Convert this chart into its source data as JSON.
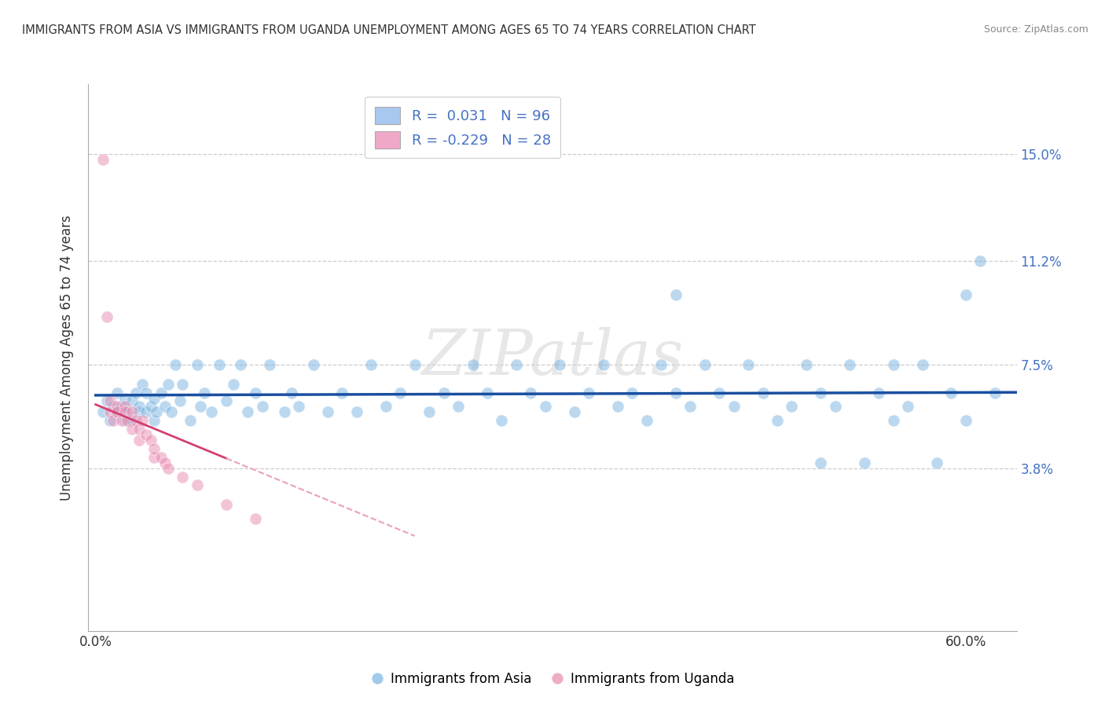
{
  "title": "IMMIGRANTS FROM ASIA VS IMMIGRANTS FROM UGANDA UNEMPLOYMENT AMONG AGES 65 TO 74 YEARS CORRELATION CHART",
  "source": "Source: ZipAtlas.com",
  "ylabel": "Unemployment Among Ages 65 to 74 years",
  "y_tick_labels": [
    "3.8%",
    "7.5%",
    "11.2%",
    "15.0%"
  ],
  "y_ticks": [
    0.038,
    0.075,
    0.112,
    0.15
  ],
  "xlim": [
    -0.005,
    0.635
  ],
  "ylim": [
    -0.02,
    0.175
  ],
  "asia_color": "#7ab3e0",
  "uganda_color": "#e88ab0",
  "asia_line_color": "#1a4fa0",
  "uganda_line_color": "#d44070",
  "uganda_line_dashed_color": "#e8a0c0",
  "watermark": "ZIPatlas",
  "asia_scatter": [
    [
      0.005,
      0.058
    ],
    [
      0.008,
      0.062
    ],
    [
      0.01,
      0.055
    ],
    [
      0.012,
      0.06
    ],
    [
      0.015,
      0.058
    ],
    [
      0.015,
      0.065
    ],
    [
      0.018,
      0.06
    ],
    [
      0.02,
      0.055
    ],
    [
      0.02,
      0.063
    ],
    [
      0.022,
      0.058
    ],
    [
      0.025,
      0.062
    ],
    [
      0.025,
      0.055
    ],
    [
      0.028,
      0.065
    ],
    [
      0.03,
      0.058
    ],
    [
      0.03,
      0.06
    ],
    [
      0.032,
      0.068
    ],
    [
      0.035,
      0.058
    ],
    [
      0.035,
      0.065
    ],
    [
      0.038,
      0.06
    ],
    [
      0.04,
      0.055
    ],
    [
      0.04,
      0.063
    ],
    [
      0.042,
      0.058
    ],
    [
      0.045,
      0.065
    ],
    [
      0.048,
      0.06
    ],
    [
      0.05,
      0.068
    ],
    [
      0.052,
      0.058
    ],
    [
      0.055,
      0.075
    ],
    [
      0.058,
      0.062
    ],
    [
      0.06,
      0.068
    ],
    [
      0.065,
      0.055
    ],
    [
      0.07,
      0.075
    ],
    [
      0.072,
      0.06
    ],
    [
      0.075,
      0.065
    ],
    [
      0.08,
      0.058
    ],
    [
      0.085,
      0.075
    ],
    [
      0.09,
      0.062
    ],
    [
      0.095,
      0.068
    ],
    [
      0.1,
      0.075
    ],
    [
      0.105,
      0.058
    ],
    [
      0.11,
      0.065
    ],
    [
      0.115,
      0.06
    ],
    [
      0.12,
      0.075
    ],
    [
      0.13,
      0.058
    ],
    [
      0.135,
      0.065
    ],
    [
      0.14,
      0.06
    ],
    [
      0.15,
      0.075
    ],
    [
      0.16,
      0.058
    ],
    [
      0.17,
      0.065
    ],
    [
      0.18,
      0.058
    ],
    [
      0.19,
      0.075
    ],
    [
      0.2,
      0.06
    ],
    [
      0.21,
      0.065
    ],
    [
      0.22,
      0.075
    ],
    [
      0.23,
      0.058
    ],
    [
      0.24,
      0.065
    ],
    [
      0.25,
      0.06
    ],
    [
      0.26,
      0.075
    ],
    [
      0.27,
      0.065
    ],
    [
      0.28,
      0.055
    ],
    [
      0.29,
      0.075
    ],
    [
      0.3,
      0.065
    ],
    [
      0.31,
      0.06
    ],
    [
      0.32,
      0.075
    ],
    [
      0.33,
      0.058
    ],
    [
      0.34,
      0.065
    ],
    [
      0.35,
      0.075
    ],
    [
      0.36,
      0.06
    ],
    [
      0.37,
      0.065
    ],
    [
      0.38,
      0.055
    ],
    [
      0.39,
      0.075
    ],
    [
      0.4,
      0.065
    ],
    [
      0.4,
      0.1
    ],
    [
      0.41,
      0.06
    ],
    [
      0.42,
      0.075
    ],
    [
      0.43,
      0.065
    ],
    [
      0.44,
      0.06
    ],
    [
      0.45,
      0.075
    ],
    [
      0.46,
      0.065
    ],
    [
      0.47,
      0.055
    ],
    [
      0.48,
      0.06
    ],
    [
      0.49,
      0.075
    ],
    [
      0.5,
      0.04
    ],
    [
      0.5,
      0.065
    ],
    [
      0.51,
      0.06
    ],
    [
      0.52,
      0.075
    ],
    [
      0.53,
      0.04
    ],
    [
      0.54,
      0.065
    ],
    [
      0.55,
      0.075
    ],
    [
      0.55,
      0.055
    ],
    [
      0.56,
      0.06
    ],
    [
      0.57,
      0.075
    ],
    [
      0.58,
      0.04
    ],
    [
      0.59,
      0.065
    ],
    [
      0.6,
      0.055
    ],
    [
      0.6,
      0.1
    ],
    [
      0.61,
      0.112
    ],
    [
      0.62,
      0.065
    ]
  ],
  "uganda_scatter": [
    [
      0.005,
      0.148
    ],
    [
      0.008,
      0.092
    ],
    [
      0.01,
      0.058
    ],
    [
      0.01,
      0.062
    ],
    [
      0.012,
      0.055
    ],
    [
      0.015,
      0.06
    ],
    [
      0.015,
      0.058
    ],
    [
      0.018,
      0.055
    ],
    [
      0.02,
      0.06
    ],
    [
      0.02,
      0.058
    ],
    [
      0.022,
      0.055
    ],
    [
      0.025,
      0.058
    ],
    [
      0.025,
      0.052
    ],
    [
      0.028,
      0.055
    ],
    [
      0.03,
      0.048
    ],
    [
      0.03,
      0.052
    ],
    [
      0.032,
      0.055
    ],
    [
      0.035,
      0.05
    ],
    [
      0.038,
      0.048
    ],
    [
      0.04,
      0.042
    ],
    [
      0.04,
      0.045
    ],
    [
      0.045,
      0.042
    ],
    [
      0.048,
      0.04
    ],
    [
      0.05,
      0.038
    ],
    [
      0.06,
      0.035
    ],
    [
      0.07,
      0.032
    ],
    [
      0.09,
      0.025
    ],
    [
      0.11,
      0.02
    ]
  ]
}
